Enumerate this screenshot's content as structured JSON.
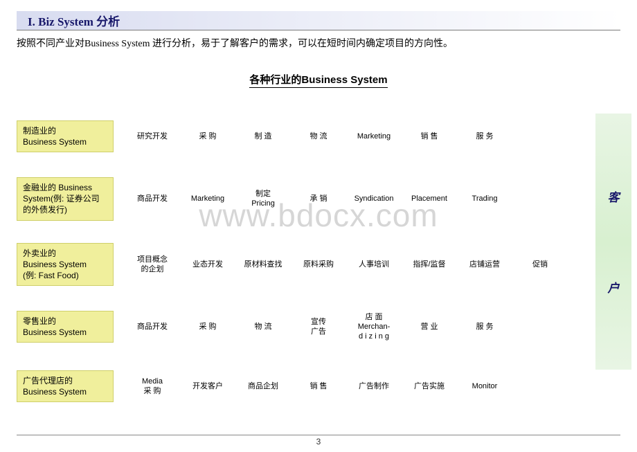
{
  "title": "I. Biz System 分析",
  "subtitle": "按照不同产业对Business System 进行分析，易于了解客户的需求，可以在短时间内确定项目的方向性。",
  "chart_title": "各种行业的Business System",
  "watermark": "www.bdocx.com",
  "page_number": "3",
  "customer_label": [
    "客",
    "户"
  ],
  "rows": [
    {
      "label": "制造业的\nBusiness System",
      "items": [
        "研究开发",
        "采  购",
        "制  造",
        "物  流",
        "Marketing",
        "销  售",
        "服  务",
        ""
      ]
    },
    {
      "label": "金融业的 Business System(例: 证券公司的外债发行)",
      "items": [
        "商品开发",
        "Marketing",
        "制定\nPricing",
        "承  销",
        "Syndication",
        "Placement",
        "Trading",
        ""
      ]
    },
    {
      "label": "外卖业的\nBusiness System\n(例: Fast Food)",
      "items": [
        "项目概念\n的企划",
        "业态开发",
        "原材料查找",
        "原料采购",
        "人事培训",
        "指挥/监督",
        "店铺运营",
        "促销"
      ]
    },
    {
      "label": "零售业的\nBusiness System",
      "items": [
        "商品开发",
        "采  购",
        "物  流",
        "宣传\n广告",
        "店  面\nMerchan-\nd i z i n g",
        "营  业",
        "服  务",
        ""
      ]
    },
    {
      "label": "广告代理店的\nBusiness System",
      "items": [
        "Media\n采  购",
        "开发客户",
        "商品企划",
        "销  售",
        "广告制作",
        "广告实施",
        "Monitor",
        ""
      ]
    }
  ]
}
